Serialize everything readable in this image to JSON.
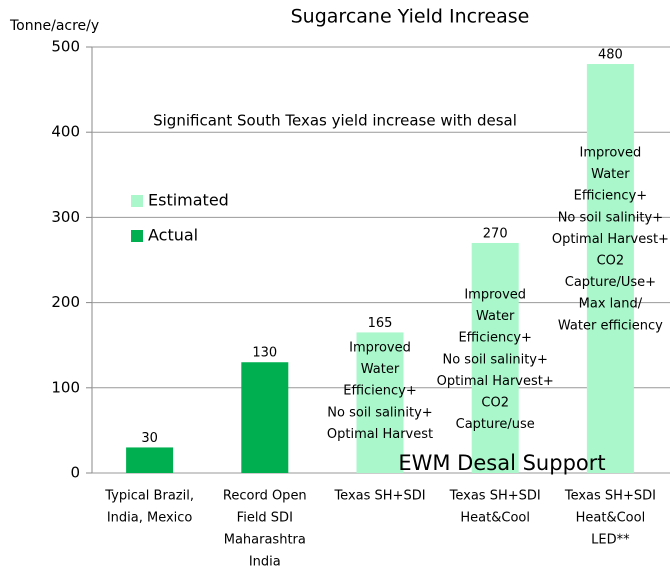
{
  "chart_data": {
    "type": "bar",
    "title": "Sugarcane Yield Increase",
    "y_label": "Tonne/acre/y",
    "categories": [
      [
        "Typical Brazil,",
        "India, Mexico"
      ],
      [
        "Record Open",
        "Field SDI",
        "Maharashtra",
        "India"
      ],
      [
        "Texas SH+SDI"
      ],
      [
        "Texas SH+SDI",
        "Heat&Cool"
      ],
      [
        "Texas   SH+SDI",
        "Heat&Cool",
        "LED**"
      ]
    ],
    "series": [
      {
        "name": "Estimated",
        "color": "#a9f7cb",
        "values": [
          null,
          null,
          165,
          270,
          480
        ]
      },
      {
        "name": "Actual",
        "color": "#00b050",
        "values": [
          30,
          130,
          null,
          null,
          null
        ]
      }
    ],
    "bar_notes": [
      [],
      [],
      [
        "Improved",
        "Water",
        "Efficiency+",
        "No soil salinity+",
        "Optimal Harvest"
      ],
      [
        "Improved",
        "Water",
        "Efficiency+",
        "No soil salinity+",
        "Optimal Harvest+",
        "CO2",
        "Capture/use"
      ],
      [
        "Improved",
        "Water",
        "Efficiency+",
        "No soil salinity+",
        "Optimal Harvest+",
        "CO2",
        "Capture/Use+",
        "Max land/",
        "Water efficiency"
      ]
    ],
    "annotations": [
      "Significant South Texas yield increase with desal",
      "EWM Desal Support"
    ],
    "ylim": [
      0,
      500
    ],
    "yticks": [
      0,
      100,
      200,
      300,
      400,
      500
    ],
    "grid": true,
    "legend": "left"
  }
}
